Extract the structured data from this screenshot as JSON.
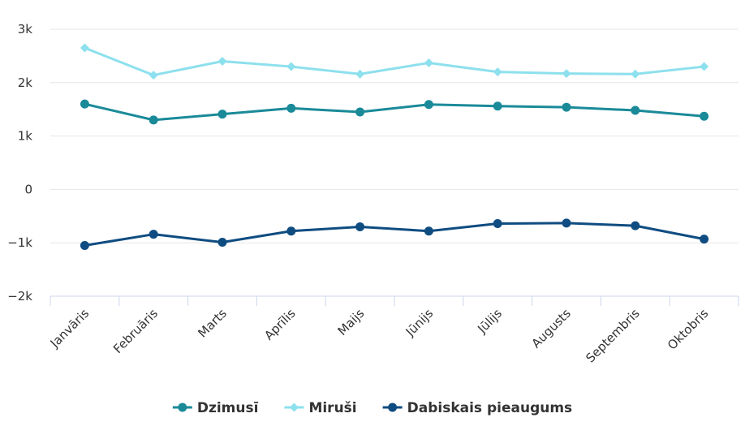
{
  "chart_data": {
    "type": "line",
    "title": "",
    "xlabel": "",
    "ylabel": "",
    "categories": [
      "Janvāris",
      "Februāris",
      "Marts",
      "Aprīlis",
      "Maijs",
      "Jūnijs",
      "Jūlijs",
      "Augusts",
      "Septembris",
      "Oktobris"
    ],
    "ylim": [
      -2000,
      3000
    ],
    "yticks": [
      -2000,
      -1000,
      0,
      1000,
      2000,
      3000
    ],
    "ytick_labels": [
      "−2k",
      "−1k",
      "0",
      "1k",
      "2k",
      "3k"
    ],
    "grid": true,
    "legend_position": "bottom-center",
    "series": [
      {
        "name": "Dzimusī",
        "color": "#1a8a99",
        "marker": "circle",
        "values": [
          1600,
          1300,
          1410,
          1520,
          1450,
          1590,
          1560,
          1540,
          1480,
          1370
        ]
      },
      {
        "name": "Miruši",
        "color": "#8de0ed",
        "marker": "diamond",
        "values": [
          2650,
          2140,
          2400,
          2300,
          2160,
          2370,
          2200,
          2170,
          2160,
          2300
        ]
      },
      {
        "name": "Dabiskais pieaugums",
        "color": "#0f4c81",
        "marker": "circle",
        "values": [
          -1050,
          -840,
          -990,
          -780,
          -700,
          -780,
          -640,
          -630,
          -680,
          -930
        ]
      }
    ]
  }
}
